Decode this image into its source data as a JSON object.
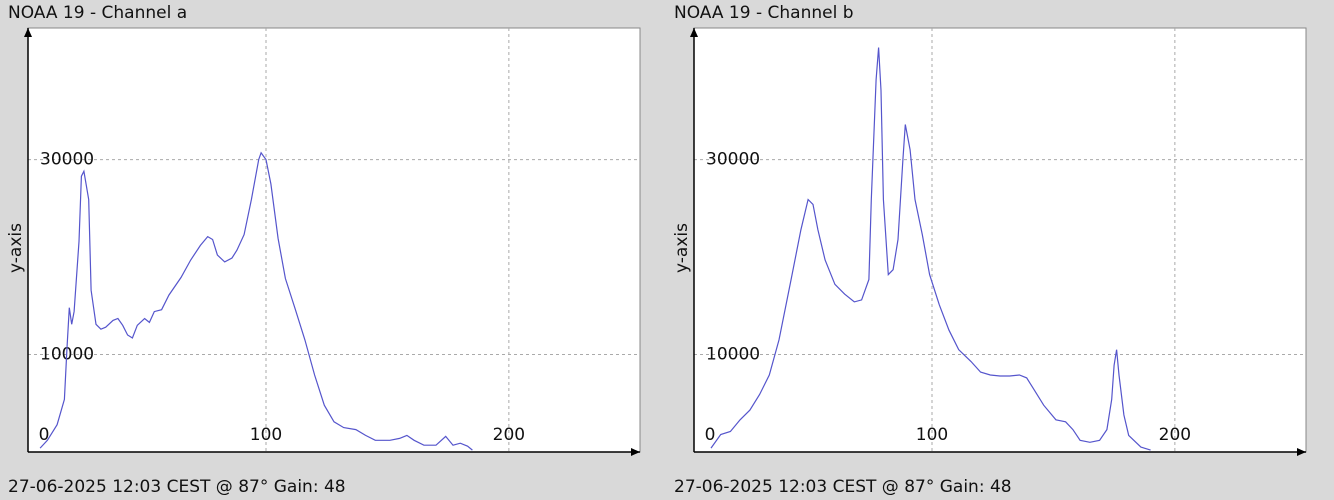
{
  "chart_data": [
    {
      "type": "line",
      "title": "NOAA 19 - Channel a",
      "footer": "27-06-2025 12:03 CEST @ 87° Gain: 48",
      "ylabel": "y-axis",
      "xlim": [
        2,
        254
      ],
      "ylim": [
        0,
        43500
      ],
      "xticks": [
        0,
        100,
        200
      ],
      "yticks": [
        10000,
        30000
      ],
      "grid": true,
      "series": [
        {
          "color": "#5555cc",
          "x": [
            7,
            10,
            14,
            17,
            18,
            19,
            20,
            21,
            23,
            24,
            25,
            27,
            28,
            30,
            32,
            34,
            37,
            39,
            41,
            43,
            45,
            47,
            50,
            52,
            54,
            57,
            60,
            65,
            69,
            73,
            76,
            78,
            80,
            83,
            86,
            88,
            91,
            94,
            97,
            98,
            100,
            102,
            105,
            108,
            112,
            116,
            120,
            124,
            128,
            132,
            137,
            141,
            145,
            151,
            155,
            158,
            161,
            165,
            170,
            174,
            177,
            180,
            183,
            185
          ],
          "values": [
            400,
            1200,
            2800,
            5400,
            10500,
            14800,
            13100,
            14400,
            21600,
            28300,
            28800,
            25900,
            16600,
            13100,
            12600,
            12800,
            13500,
            13700,
            13000,
            12000,
            11700,
            13000,
            13700,
            13300,
            14400,
            14600,
            16100,
            17900,
            19700,
            21200,
            22100,
            21800,
            20200,
            19500,
            19900,
            20700,
            22300,
            25900,
            30000,
            30700,
            30000,
            27500,
            21900,
            17800,
            14700,
            11500,
            7900,
            4800,
            3100,
            2500,
            2300,
            1700,
            1200,
            1200,
            1400,
            1700,
            1200,
            700,
            700,
            1600,
            700,
            900,
            600,
            200
          ]
        }
      ]
    },
    {
      "type": "line",
      "title": "NOAA 19 - Channel b",
      "footer": "27-06-2025 12:03 CEST @ 87° Gain: 48",
      "ylabel": "y-axis",
      "xlim": [
        2,
        254
      ],
      "ylim": [
        0,
        43500
      ],
      "xticks": [
        0,
        100,
        200
      ],
      "yticks": [
        10000,
        30000
      ],
      "grid": true,
      "series": [
        {
          "color": "#5555cc",
          "x": [
            9,
            13,
            17,
            21,
            25,
            29,
            33,
            37,
            42,
            46,
            49,
            51,
            53,
            56,
            60,
            64,
            68,
            71,
            74,
            75,
            77,
            78,
            79,
            80,
            82,
            84,
            86,
            88,
            89,
            91,
            93,
            96,
            99,
            103,
            107,
            111,
            116,
            120,
            124,
            128,
            132,
            136,
            139,
            142,
            146,
            151,
            155,
            158,
            161,
            165,
            169,
            172,
            174,
            175,
            176,
            177,
            179,
            181,
            186,
            190
          ],
          "values": [
            400,
            1800,
            2100,
            3300,
            4300,
            5900,
            7900,
            11500,
            17700,
            22800,
            25900,
            25400,
            22800,
            19700,
            17200,
            16200,
            15400,
            15600,
            17700,
            25900,
            38200,
            41500,
            37100,
            25900,
            18200,
            18700,
            21800,
            30000,
            33600,
            31000,
            25900,
            22300,
            18200,
            15100,
            12500,
            10500,
            9300,
            8200,
            7900,
            7800,
            7800,
            7900,
            7600,
            6400,
            4800,
            3300,
            3100,
            2300,
            1200,
            1000,
            1200,
            2300,
            5400,
            8900,
            10500,
            7900,
            3800,
            1700,
            500,
            200
          ]
        }
      ]
    }
  ]
}
